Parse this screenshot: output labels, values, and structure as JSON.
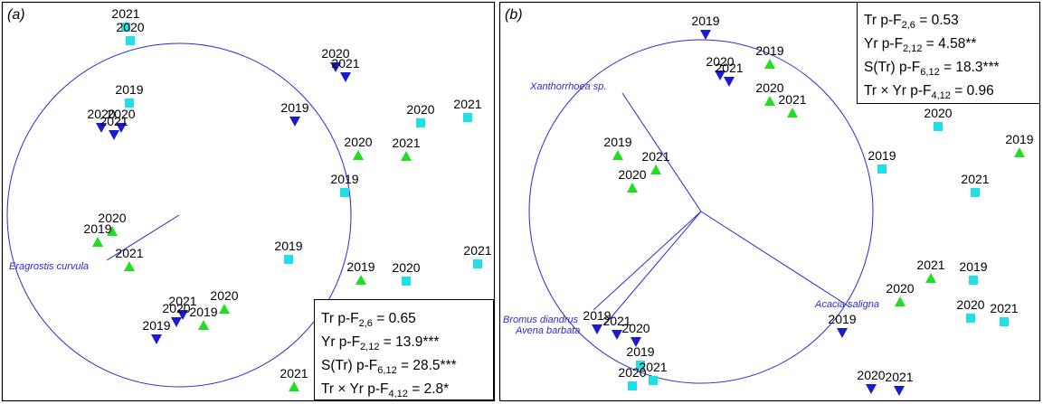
{
  "colors": {
    "square": "#1ee0e6",
    "down_triangle": "#1a1ad6",
    "up_triangle": "#22dd22",
    "circle": "#2b2bd6",
    "vector": "#2b2bd6",
    "frame": "#000000"
  },
  "chart_data": [
    {
      "type": "scatter",
      "panel_label": "(a)",
      "xlim": [
        0,
        545
      ],
      "ylim": [
        0,
        443
      ],
      "correlation_circle": {
        "cx": 198,
        "cy": 238,
        "r": 190
      },
      "vectors": [
        {
          "label": "Eragrostis curvula",
          "from": [
            198,
            238
          ],
          "to": [
            118,
            288
          ],
          "label_at": [
            10,
            298
          ]
        }
      ],
      "points": [
        {
          "marker": "square",
          "label": "2021",
          "x": 139,
          "y": 30
        },
        {
          "marker": "square",
          "label": "2020",
          "x": 144,
          "y": 45
        },
        {
          "marker": "square",
          "label": "2019",
          "x": 143,
          "y": 114
        },
        {
          "marker": "down_triangle",
          "label": "2020",
          "x": 112,
          "y": 141
        },
        {
          "marker": "down_triangle",
          "label": "2020",
          "x": 134,
          "y": 141
        },
        {
          "marker": "down_triangle",
          "label": "2021",
          "x": 126,
          "y": 149
        },
        {
          "marker": "down_triangle",
          "label": "2020",
          "x": 371,
          "y": 74
        },
        {
          "marker": "down_triangle",
          "label": "2021",
          "x": 382,
          "y": 85
        },
        {
          "marker": "down_triangle",
          "label": "2019",
          "x": 326,
          "y": 134
        },
        {
          "marker": "square",
          "label": "2020",
          "x": 465,
          "y": 136
        },
        {
          "marker": "square",
          "label": "2021",
          "x": 517,
          "y": 130
        },
        {
          "marker": "up_triangle",
          "label": "2020",
          "x": 396,
          "y": 172
        },
        {
          "marker": "up_triangle",
          "label": "2021",
          "x": 449,
          "y": 173
        },
        {
          "marker": "square",
          "label": "2019",
          "x": 381,
          "y": 213
        },
        {
          "marker": "up_triangle",
          "label": "2020",
          "x": 124,
          "y": 256
        },
        {
          "marker": "up_triangle",
          "label": "2019",
          "x": 108,
          "y": 268
        },
        {
          "marker": "up_triangle",
          "label": "2021",
          "x": 143,
          "y": 295
        },
        {
          "marker": "square",
          "label": "2019",
          "x": 319,
          "y": 287
        },
        {
          "marker": "up_triangle",
          "label": "2019",
          "x": 399,
          "y": 310
        },
        {
          "marker": "square",
          "label": "2020",
          "x": 449,
          "y": 311
        },
        {
          "marker": "square",
          "label": "2021",
          "x": 528,
          "y": 292
        },
        {
          "marker": "up_triangle",
          "label": "2020",
          "x": 248,
          "y": 342
        },
        {
          "marker": "down_triangle",
          "label": "2021",
          "x": 202,
          "y": 348
        },
        {
          "marker": "down_triangle",
          "label": "2020",
          "x": 195,
          "y": 356
        },
        {
          "marker": "down_triangle",
          "label": "2019",
          "x": 173,
          "y": 375
        },
        {
          "marker": "up_triangle",
          "label": "2019",
          "x": 225,
          "y": 360
        },
        {
          "marker": "up_triangle",
          "label": "2021",
          "x": 325,
          "y": 428
        }
      ],
      "stats_box": {
        "lines": [
          {
            "pre": "Tr p-F",
            "sub": "2,6",
            "post": " = 0.65"
          },
          {
            "pre": "Yr p-F",
            "sub": "2,12",
            "post": " = 13.9***"
          },
          {
            "pre": "S(Tr) p-F",
            "sub": "6,12",
            "post": " = 28.5***"
          },
          {
            "pre": "Tr × Yr p-F",
            "sub": "4,12",
            "post": " = 2.8*"
          }
        ]
      }
    },
    {
      "type": "scatter",
      "panel_label": "(b)",
      "xlim": [
        0,
        597
      ],
      "ylim": [
        0,
        443
      ],
      "correlation_circle": {
        "cx": 775,
        "cy": 234,
        "r": 190
      },
      "vectors": [
        {
          "label": "Xanthorrhoea sp.",
          "from": [
            775,
            234
          ],
          "to": [
            688,
            103
          ],
          "label_at": [
            586,
            99
          ]
        },
        {
          "label": "Acacia saligna",
          "from": [
            775,
            234
          ],
          "to": [
            940,
            340
          ],
          "label_at": [
            901,
            340
          ]
        },
        {
          "label": "Bromus diandrus",
          "from": [
            775,
            234
          ],
          "to": [
            656,
            343
          ],
          "label_at": [
            556,
            357
          ]
        },
        {
          "label": "Avena barbata",
          "from": [
            775,
            234
          ],
          "to": [
            668,
            360
          ],
          "label_at": [
            570,
            369
          ]
        }
      ],
      "points": [
        {
          "marker": "down_triangle",
          "label": "2019",
          "x": 780,
          "y": 38
        },
        {
          "marker": "up_triangle",
          "label": "2019",
          "x": 851,
          "y": 71
        },
        {
          "marker": "down_triangle",
          "label": "2020",
          "x": 796,
          "y": 83
        },
        {
          "marker": "down_triangle",
          "label": "2021",
          "x": 806,
          "y": 90
        },
        {
          "marker": "up_triangle",
          "label": "2020",
          "x": 851,
          "y": 112
        },
        {
          "marker": "up_triangle",
          "label": "2021",
          "x": 876,
          "y": 125
        },
        {
          "marker": "square",
          "label": "2020",
          "x": 1037,
          "y": 140
        },
        {
          "marker": "up_triangle",
          "label": "2019",
          "x": 1127,
          "y": 169
        },
        {
          "marker": "up_triangle",
          "label": "2019",
          "x": 683,
          "y": 172
        },
        {
          "marker": "up_triangle",
          "label": "2021",
          "x": 725,
          "y": 188
        },
        {
          "marker": "up_triangle",
          "label": "2020",
          "x": 699,
          "y": 208
        },
        {
          "marker": "square",
          "label": "2019",
          "x": 975,
          "y": 187
        },
        {
          "marker": "square",
          "label": "2021",
          "x": 1078,
          "y": 213
        },
        {
          "marker": "up_triangle",
          "label": "2021",
          "x": 1029,
          "y": 308
        },
        {
          "marker": "square",
          "label": "2019",
          "x": 1076,
          "y": 310
        },
        {
          "marker": "up_triangle",
          "label": "2020",
          "x": 995,
          "y": 334
        },
        {
          "marker": "square",
          "label": "2020",
          "x": 1073,
          "y": 352
        },
        {
          "marker": "square",
          "label": "2021",
          "x": 1110,
          "y": 356
        },
        {
          "marker": "down_triangle",
          "label": "2019",
          "x": 931,
          "y": 368
        },
        {
          "marker": "down_triangle",
          "label": "2019",
          "x": 660,
          "y": 364
        },
        {
          "marker": "down_triangle",
          "label": "2021",
          "x": 682,
          "y": 370
        },
        {
          "marker": "down_triangle",
          "label": "2020",
          "x": 703,
          "y": 378
        },
        {
          "marker": "square",
          "label": "2019",
          "x": 708,
          "y": 404
        },
        {
          "marker": "square",
          "label": "2021",
          "x": 722,
          "y": 421
        },
        {
          "marker": "square",
          "label": "2020",
          "x": 699,
          "y": 427
        },
        {
          "marker": "down_triangle",
          "label": "2020",
          "x": 963,
          "y": 430
        },
        {
          "marker": "down_triangle",
          "label": "2021",
          "x": 994,
          "y": 432
        }
      ],
      "stats_box": {
        "lines": [
          {
            "pre": "Tr p-F",
            "sub": "2,6",
            "post": " = 0.53"
          },
          {
            "pre": "Yr p-F",
            "sub": "2,12",
            "post": " = 4.58**"
          },
          {
            "pre": "S(Tr) p-F",
            "sub": "6,12",
            "post": " = 18.3***"
          },
          {
            "pre": "Tr × Yr p-F",
            "sub": "4,12",
            "post": " = 0.96"
          }
        ]
      }
    }
  ]
}
